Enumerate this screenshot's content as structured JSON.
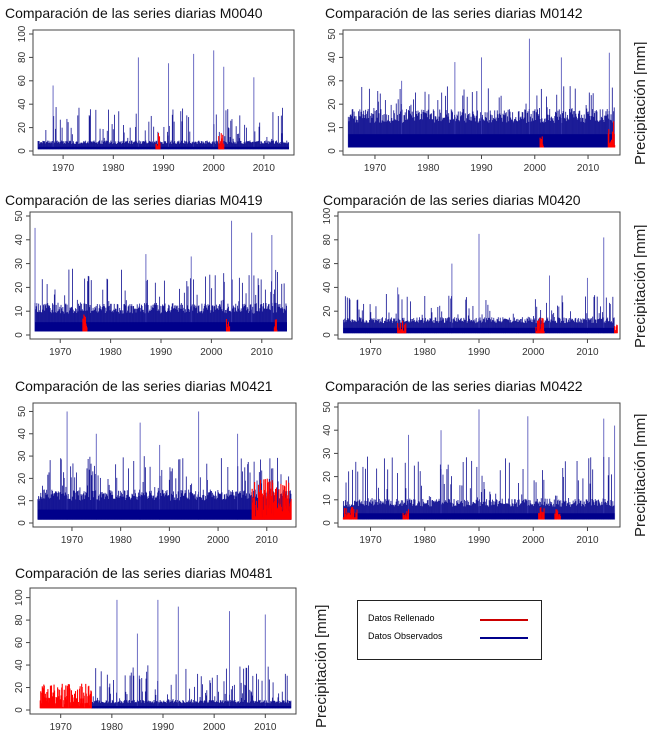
{
  "ylabel": "Precipitación [mm]",
  "legend": [
    {
      "label": "Datos Rellenado",
      "color": "#cc0000"
    },
    {
      "label": "Datos Observados",
      "color": "#00008b"
    }
  ],
  "colors": {
    "observed": "#00008b",
    "filled": "#ff0000"
  },
  "chart_data": [
    {
      "type": "line",
      "title": "Comparación de las series diarias M0040",
      "xlim": [
        1964,
        2016
      ],
      "ylim": [
        0,
        100
      ],
      "xticks": [
        1970,
        1980,
        1990,
        2000,
        2010
      ],
      "yticks": [
        0,
        20,
        40,
        60,
        80,
        100
      ],
      "base": 6,
      "cap": 38,
      "peaks": [
        [
          1985,
          80
        ],
        [
          1991,
          75
        ],
        [
          1996,
          83
        ],
        [
          2000,
          86
        ],
        [
          2002,
          72
        ],
        [
          1968,
          56
        ],
        [
          2008,
          63
        ]
      ],
      "filled": [
        [
          1988.5,
          1989.3,
          14
        ],
        [
          2001,
          2002,
          14
        ]
      ],
      "series": []
    },
    {
      "type": "line",
      "title": "Comparación de las series diarias M0142",
      "xlim": [
        1964,
        2016
      ],
      "ylim": [
        0,
        50
      ],
      "xticks": [
        1970,
        1980,
        1990,
        2000,
        2010
      ],
      "yticks": [
        0,
        10,
        20,
        30,
        40,
        50
      ],
      "base": 12,
      "cap": 28,
      "peaks": [
        [
          1999,
          48
        ],
        [
          1985,
          38
        ],
        [
          1990,
          40
        ],
        [
          2005,
          40
        ],
        [
          2014,
          42
        ],
        [
          1975,
          30
        ]
      ],
      "filled": [
        [
          2001,
          2001.6,
          6
        ],
        [
          2013.8,
          2015,
          12
        ]
      ],
      "series": []
    },
    {
      "type": "line",
      "title": "Comparación de las series diarias M0419",
      "xlim": [
        1964,
        2016
      ],
      "ylim": [
        0,
        50
      ],
      "xticks": [
        1970,
        1980,
        1990,
        2000,
        2010
      ],
      "yticks": [
        0,
        10,
        20,
        30,
        40,
        50
      ],
      "base": 9,
      "cap": 28,
      "peaks": [
        [
          1965,
          45
        ],
        [
          2004,
          48
        ],
        [
          2008,
          43
        ],
        [
          2012,
          42
        ],
        [
          1987,
          34
        ],
        [
          1996,
          33
        ]
      ],
      "filled": [
        [
          1974.5,
          1975.3,
          8
        ],
        [
          2003,
          2003.6,
          5
        ],
        [
          2012.5,
          2013,
          5
        ]
      ],
      "series": []
    },
    {
      "type": "line",
      "title": "Comparación de las series diarias M0420",
      "xlim": [
        1964,
        2016
      ],
      "ylim": [
        0,
        100
      ],
      "xticks": [
        1970,
        1980,
        1990,
        2000,
        2010
      ],
      "yticks": [
        0,
        20,
        40,
        60,
        80,
        100
      ],
      "base": 10,
      "cap": 35,
      "peaks": [
        [
          1990,
          85
        ],
        [
          1985,
          60
        ],
        [
          2013,
          82
        ],
        [
          2003,
          50
        ],
        [
          2010,
          48
        ],
        [
          1975,
          40
        ]
      ],
      "filled": [
        [
          1975,
          1976.5,
          10
        ],
        [
          2000.5,
          2002,
          14
        ],
        [
          2015,
          2015.5,
          8
        ]
      ],
      "series": []
    },
    {
      "type": "line",
      "title": "Comparación de las series diarias M0421",
      "xlim": [
        1962,
        2016
      ],
      "ylim": [
        0,
        52
      ],
      "xticks": [
        1970,
        1980,
        1990,
        2000,
        2010
      ],
      "yticks": [
        0,
        10,
        20,
        30,
        40,
        50
      ],
      "base": 10,
      "cap": 30,
      "peaks": [
        [
          1969,
          50
        ],
        [
          1996,
          50
        ],
        [
          1984,
          45
        ],
        [
          1975,
          40
        ],
        [
          2004,
          40
        ],
        [
          1988,
          35
        ]
      ],
      "filled": [
        [
          2007,
          2015,
          18
        ]
      ],
      "series": []
    },
    {
      "type": "line",
      "title": "Comparación de las series diarias M0422",
      "xlim": [
        1964,
        2016
      ],
      "ylim": [
        0,
        50
      ],
      "xticks": [
        1970,
        1980,
        1990,
        2000,
        2010
      ],
      "yticks": [
        0,
        10,
        20,
        30,
        40,
        50
      ],
      "base": 7,
      "cap": 30,
      "peaks": [
        [
          1990,
          49
        ],
        [
          1999,
          46
        ],
        [
          2013,
          45
        ],
        [
          2015,
          42
        ],
        [
          1983,
          40
        ],
        [
          1977,
          38
        ]
      ],
      "filled": [
        [
          1965,
          1967.5,
          5
        ],
        [
          1976,
          1977,
          4
        ],
        [
          2001,
          2002,
          5
        ],
        [
          2004,
          2005,
          4
        ]
      ],
      "series": []
    },
    {
      "type": "line",
      "title": "Comparación de las series diarias M0481",
      "xlim": [
        1964,
        2016
      ],
      "ylim": [
        0,
        105
      ],
      "xticks": [
        1970,
        1980,
        1990,
        2000,
        2010
      ],
      "yticks": [
        0,
        20,
        40,
        60,
        80,
        100
      ],
      "base": 6,
      "cap": 40,
      "peaks": [
        [
          1981,
          98
        ],
        [
          1989,
          98
        ],
        [
          1993,
          92
        ],
        [
          2003,
          88
        ],
        [
          2010,
          85
        ],
        [
          1985,
          68
        ]
      ],
      "filled": [
        [
          1966,
          1976,
          22
        ]
      ],
      "observedStart": 1976,
      "series": []
    }
  ]
}
